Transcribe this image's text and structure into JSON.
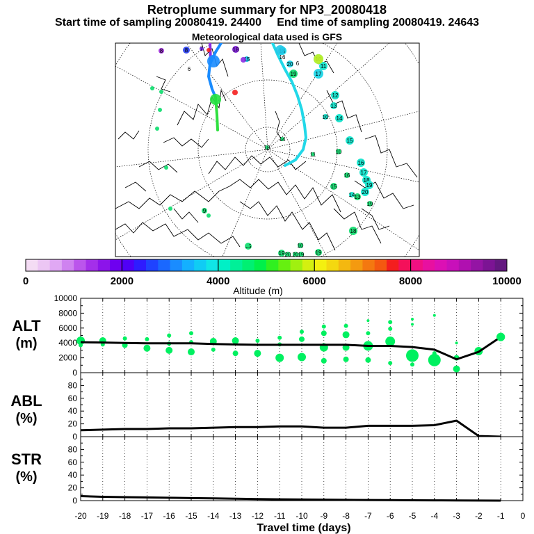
{
  "header": {
    "title": "Retroplume summary for NP3_20080418",
    "start_label": "Start time of sampling 20080419. 24400",
    "end_label": "End time of sampling 20080419. 24643",
    "met_label": "Meteorological data used is GFS"
  },
  "map": {
    "ages": [
      {
        "t": "8",
        "c": "#a23cd8"
      },
      {
        "t": "8",
        "c": "#3a4ff0"
      },
      {
        "t": "7",
        "c": "#7a3ce8"
      },
      {
        "t": "18",
        "c": "#8a2be2"
      },
      {
        "t": "15",
        "c": "#22c8e8"
      },
      {
        "t": "18",
        "c": "#2ad8e8"
      },
      {
        "t": "16",
        "c": "#2ad8e8"
      },
      {
        "t": "20",
        "c": "#2ad8e8"
      },
      {
        "t": "6",
        "c": "#c8f020"
      },
      {
        "t": "10",
        "c": "#1fe6d0"
      },
      {
        "t": "11",
        "c": "#1fe6d0"
      },
      {
        "t": "17",
        "c": "#2ad8e8"
      },
      {
        "t": "19",
        "c": "#22e07a"
      },
      {
        "t": "10",
        "c": "#1fe6d0"
      },
      {
        "t": "12",
        "c": "#1fe6d0"
      },
      {
        "t": "13",
        "c": "#1fe6d0"
      },
      {
        "t": "14",
        "c": "#1fe6d0"
      },
      {
        "t": "15",
        "c": "#1fe6d0"
      },
      {
        "t": "10",
        "c": "#22e07a"
      },
      {
        "t": "16",
        "c": "#1fe6d0"
      },
      {
        "t": "17",
        "c": "#1fe6d0"
      },
      {
        "t": "18",
        "c": "#1fe6d0"
      },
      {
        "t": "19",
        "c": "#1fe6d0"
      },
      {
        "t": "20",
        "c": "#1fe6d0"
      },
      {
        "t": "16",
        "c": "#22e07a"
      },
      {
        "t": "15",
        "c": "#22e07a"
      },
      {
        "t": "14",
        "c": "#1fe6d0"
      },
      {
        "t": "13",
        "c": "#22e07a"
      },
      {
        "t": "19",
        "c": "#22e07a"
      },
      {
        "t": "18",
        "c": "#22e07a"
      },
      {
        "t": "10",
        "c": "#22e07a"
      },
      {
        "t": "19",
        "c": "#22e07a"
      },
      {
        "t": "20",
        "c": "#22e07a"
      },
      {
        "t": "20",
        "c": "#22e07a"
      },
      {
        "t": "19",
        "c": "#22e07a"
      },
      {
        "t": "19",
        "c": "#22e07a"
      },
      {
        "t": "18",
        "c": "#22e07a"
      },
      {
        "t": "14",
        "c": "#22e07a"
      },
      {
        "t": "15",
        "c": "#22e07a"
      },
      {
        "t": "11",
        "c": "#22e07a"
      },
      {
        "t": "6",
        "c": "#22e07a"
      },
      {
        "t": "9",
        "c": "#22e07a"
      }
    ]
  },
  "colorbar": {
    "colors": [
      "#f4dcf4",
      "#ecc6f4",
      "#e0a8f4",
      "#cf82f0",
      "#bb55ec",
      "#a42fea",
      "#8c14ea",
      "#6e00f0",
      "#5000f6",
      "#2e1cff",
      "#1f43ff",
      "#1a68ff",
      "#1a8cff",
      "#14b0ff",
      "#10ccf4",
      "#10e6e6",
      "#00f0c6",
      "#00f098",
      "#00f072",
      "#00f04a",
      "#30f020",
      "#66f010",
      "#a0f010",
      "#d4f010",
      "#f4f010",
      "#f4d810",
      "#f4b810",
      "#f49a10",
      "#f47810",
      "#f45810",
      "#f41e1e",
      "#f4105a",
      "#f01082",
      "#e810a0",
      "#dc10b4",
      "#c810ba",
      "#b010b0",
      "#9414a4",
      "#7c1494",
      "#641880"
    ],
    "ticks": [
      "0",
      "2000",
      "4000",
      "6000",
      "8000",
      "10000"
    ],
    "axis_label": "Altitude (m)"
  },
  "panel_labels": {
    "alt_name": "ALT",
    "alt_unit": "(m)",
    "abl_name": "ABL",
    "abl_unit": "(%)",
    "str_name": "STR",
    "str_unit": "(%)",
    "xlabel": "Travel time (days)"
  },
  "chart_data": {
    "type": "line",
    "x_ticks": [
      "-20",
      "-19",
      "-18",
      "-17",
      "-16",
      "-15",
      "-14",
      "-13",
      "-12",
      "-11",
      "-10",
      "-9",
      "-8",
      "-7",
      "-6",
      "-5",
      "-4",
      "-3",
      "-2",
      "-1",
      "0"
    ],
    "xlim": [
      -20,
      0
    ],
    "xlabel": "Travel time (days)",
    "panels": [
      {
        "name": "ALT",
        "unit": "(m)",
        "ylim": [
          0,
          10000
        ],
        "yticks": [
          "0",
          "2000",
          "4000",
          "6000",
          "8000",
          "10000"
        ],
        "x": [
          -20,
          -19,
          -18,
          -17,
          -16,
          -15,
          -14,
          -13,
          -12,
          -11,
          -10,
          -9,
          -8,
          -7,
          -6,
          -5,
          -4,
          -3,
          -2,
          -1
        ],
        "mean": [
          4100,
          4050,
          4000,
          3950,
          3950,
          3950,
          3850,
          3800,
          3750,
          3750,
          3750,
          3750,
          3750,
          3600,
          3600,
          3450,
          3100,
          1800,
          2800,
          4800
        ],
        "clusters": [
          {
            "x": -20,
            "y": 4300,
            "s": 6
          },
          {
            "x": -20,
            "y": 3700,
            "s": 3
          },
          {
            "x": -19,
            "y": 4300,
            "s": 5
          },
          {
            "x": -19,
            "y": 3800,
            "s": 3
          },
          {
            "x": -18,
            "y": 4600,
            "s": 3
          },
          {
            "x": -18,
            "y": 3700,
            "s": 4
          },
          {
            "x": -17,
            "y": 4500,
            "s": 3
          },
          {
            "x": -17,
            "y": 3300,
            "s": 5
          },
          {
            "x": -16,
            "y": 5000,
            "s": 3
          },
          {
            "x": -16,
            "y": 3900,
            "s": 3
          },
          {
            "x": -16,
            "y": 3000,
            "s": 5
          },
          {
            "x": -15,
            "y": 5300,
            "s": 3
          },
          {
            "x": -15,
            "y": 4100,
            "s": 3
          },
          {
            "x": -15,
            "y": 2800,
            "s": 5
          },
          {
            "x": -14,
            "y": 4200,
            "s": 5
          },
          {
            "x": -14,
            "y": 3100,
            "s": 3
          },
          {
            "x": -13,
            "y": 4300,
            "s": 5
          },
          {
            "x": -13,
            "y": 2600,
            "s": 4
          },
          {
            "x": -12,
            "y": 4300,
            "s": 3
          },
          {
            "x": -12,
            "y": 2600,
            "s": 5
          },
          {
            "x": -11,
            "y": 4700,
            "s": 3
          },
          {
            "x": -11,
            "y": 3800,
            "s": 3
          },
          {
            "x": -11,
            "y": 2000,
            "s": 6
          },
          {
            "x": -10,
            "y": 5500,
            "s": 3
          },
          {
            "x": -10,
            "y": 4500,
            "s": 4
          },
          {
            "x": -10,
            "y": 2100,
            "s": 6
          },
          {
            "x": -9,
            "y": 6200,
            "s": 3
          },
          {
            "x": -9,
            "y": 5300,
            "s": 4
          },
          {
            "x": -9,
            "y": 3400,
            "s": 6
          },
          {
            "x": -9,
            "y": 1600,
            "s": 4
          },
          {
            "x": -8,
            "y": 6300,
            "s": 3
          },
          {
            "x": -8,
            "y": 5100,
            "s": 5
          },
          {
            "x": -8,
            "y": 3400,
            "s": 5
          },
          {
            "x": -8,
            "y": 1800,
            "s": 4
          },
          {
            "x": -7,
            "y": 7000,
            "s": 2
          },
          {
            "x": -7,
            "y": 5300,
            "s": 3
          },
          {
            "x": -7,
            "y": 3600,
            "s": 7
          },
          {
            "x": -7,
            "y": 1700,
            "s": 4
          },
          {
            "x": -6,
            "y": 6800,
            "s": 3
          },
          {
            "x": -6,
            "y": 5900,
            "s": 3
          },
          {
            "x": -6,
            "y": 4200,
            "s": 7
          },
          {
            "x": -6,
            "y": 1300,
            "s": 3
          },
          {
            "x": -5,
            "y": 7200,
            "s": 2
          },
          {
            "x": -5,
            "y": 6500,
            "s": 2
          },
          {
            "x": -5,
            "y": 2300,
            "s": 9
          },
          {
            "x": -5,
            "y": 1100,
            "s": 3
          },
          {
            "x": -4,
            "y": 7700,
            "s": 2
          },
          {
            "x": -4,
            "y": 2600,
            "s": 3
          },
          {
            "x": -4,
            "y": 1700,
            "s": 9
          },
          {
            "x": -3,
            "y": 4000,
            "s": 2
          },
          {
            "x": -3,
            "y": 2000,
            "s": 4
          },
          {
            "x": -3,
            "y": 500,
            "s": 5
          },
          {
            "x": -2,
            "y": 2900,
            "s": 6
          },
          {
            "x": -1,
            "y": 4800,
            "s": 6
          }
        ]
      },
      {
        "name": "ABL",
        "unit": "(%)",
        "ylim": [
          0,
          100
        ],
        "yticks": [
          "0",
          "20",
          "40",
          "60",
          "80"
        ],
        "x": [
          -20,
          -19,
          -18,
          -17,
          -16,
          -15,
          -14,
          -13,
          -12,
          -11,
          -10,
          -9,
          -8,
          -7,
          -6,
          -5,
          -4,
          -3,
          -2,
          -1
        ],
        "mean": [
          10,
          11,
          12,
          12,
          13,
          13,
          14,
          15,
          15,
          16,
          16,
          14,
          14,
          17,
          17,
          17,
          18,
          25,
          1,
          0
        ]
      },
      {
        "name": "STR",
        "unit": "(%)",
        "ylim": [
          0,
          100
        ],
        "yticks": [
          "0",
          "20",
          "40",
          "60",
          "80"
        ],
        "x": [
          -20,
          -19,
          -18,
          -17,
          -16,
          -15,
          -14,
          -13,
          -12,
          -11,
          -10,
          -9,
          -8,
          -7,
          -6,
          -5,
          -4,
          -3,
          -2,
          -1
        ],
        "mean": [
          7,
          6,
          5.5,
          5,
          4.5,
          4,
          3.5,
          3,
          2.5,
          2,
          1.8,
          1.5,
          1.2,
          1,
          0.8,
          0.6,
          0.4,
          0.3,
          0.2,
          0
        ]
      }
    ]
  }
}
